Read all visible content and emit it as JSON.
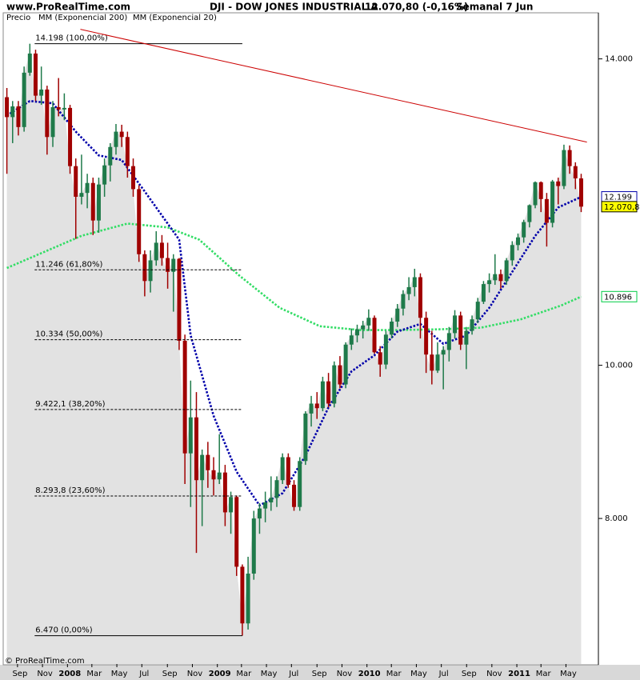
{
  "header": {
    "site": "www.ProRealTime.com",
    "instrument": "DJI - DOW JONES INDUSTRIAL A",
    "quote": "12.070,80 (-0,16%)",
    "period": "Semanal  7 Jun"
  },
  "footer": "© ProRealTime.com",
  "chart_data": {
    "type": "ohlc",
    "xlim": [
      -1,
      206
    ],
    "ylim": [
      6100,
      14560
    ],
    "xticks": [
      {
        "value": 3.7,
        "label": "Sep"
      },
      {
        "value": 12.4,
        "label": "Nov"
      },
      {
        "value": 21.1,
        "label": "2008"
      },
      {
        "value": 29.6,
        "label": "Mar"
      },
      {
        "value": 38.3,
        "label": "May"
      },
      {
        "value": 47,
        "label": "Jul"
      },
      {
        "value": 55.9,
        "label": "Sep"
      },
      {
        "value": 64.6,
        "label": "Nov"
      },
      {
        "value": 73.3,
        "label": "2009"
      },
      {
        "value": 81.7,
        "label": "Mar"
      },
      {
        "value": 90.4,
        "label": "May"
      },
      {
        "value": 99.1,
        "label": "Jul"
      },
      {
        "value": 108,
        "label": "Sep"
      },
      {
        "value": 116.7,
        "label": "Nov"
      },
      {
        "value": 125.4,
        "label": "2010"
      },
      {
        "value": 133.9,
        "label": "Mar"
      },
      {
        "value": 142.6,
        "label": "May"
      },
      {
        "value": 151.3,
        "label": "Jul"
      },
      {
        "value": 160.1,
        "label": "Sep"
      },
      {
        "value": 168.9,
        "label": "Nov"
      },
      {
        "value": 177.6,
        "label": "2011"
      },
      {
        "value": 186,
        "label": "Mar"
      },
      {
        "value": 194.7,
        "label": "May"
      }
    ],
    "yticks": [
      {
        "value": 14000,
        "label": "14.000"
      },
      {
        "value": 10000,
        "label": "10.000"
      },
      {
        "value": 8000,
        "label": "8.000"
      }
    ],
    "series": [
      {
        "name": "Precio",
        "up_color": "#1f7a4a",
        "down_color": "#a00000",
        "area_color": "#e2e2e2",
        "x": [
          0,
          2,
          4,
          6,
          8,
          10,
          12,
          14,
          16,
          18,
          20,
          22,
          24,
          26,
          28,
          30,
          32,
          34,
          36,
          38,
          40,
          42,
          44,
          46,
          48,
          50,
          52,
          54,
          56,
          58,
          60,
          62,
          64,
          66,
          68,
          70,
          72,
          74,
          76,
          78,
          80,
          82,
          84,
          86,
          88,
          90,
          92,
          94,
          96,
          98,
          100,
          102,
          104,
          106,
          108,
          110,
          112,
          114,
          116,
          118,
          120,
          122,
          124,
          126,
          128,
          130,
          132,
          134,
          136,
          138,
          140,
          142,
          144,
          146,
          148,
          150,
          152,
          154,
          156,
          158,
          160,
          162,
          164,
          166,
          168,
          170,
          172,
          174,
          176,
          178,
          180,
          182,
          184,
          186,
          188,
          190,
          192,
          194,
          196,
          198,
          200
        ],
        "values": [
          [
            13500,
            13620,
            12500,
            13240
          ],
          [
            13240,
            13450,
            12900,
            13380
          ],
          [
            13380,
            13450,
            13000,
            13110
          ],
          [
            13110,
            13900,
            13050,
            13820
          ],
          [
            13820,
            14198,
            13780,
            14070
          ],
          [
            14070,
            14120,
            13450,
            13520
          ],
          [
            13520,
            13900,
            13400,
            13600
          ],
          [
            13600,
            13650,
            12750,
            12980
          ],
          [
            12980,
            13450,
            12850,
            13370
          ],
          [
            13370,
            13750,
            13250,
            13340
          ],
          [
            13340,
            13550,
            13200,
            13360
          ],
          [
            13360,
            13400,
            12500,
            12600
          ],
          [
            12600,
            12700,
            11650,
            12200
          ],
          [
            12200,
            12750,
            12100,
            12250
          ],
          [
            12250,
            12500,
            12050,
            12380
          ],
          [
            12380,
            12450,
            11700,
            11890
          ],
          [
            11890,
            12450,
            11730,
            12360
          ],
          [
            12360,
            12700,
            12200,
            12610
          ],
          [
            12610,
            12900,
            12400,
            12850
          ],
          [
            12850,
            13150,
            12750,
            13050
          ],
          [
            13050,
            13140,
            12850,
            12980
          ],
          [
            12980,
            13050,
            12450,
            12600
          ],
          [
            12600,
            12700,
            12200,
            12300
          ],
          [
            12300,
            12350,
            11350,
            11450
          ],
          [
            11450,
            11500,
            10900,
            11100
          ],
          [
            11100,
            11500,
            10950,
            11370
          ],
          [
            11370,
            11750,
            11300,
            11600
          ],
          [
            11600,
            11700,
            11300,
            11400
          ],
          [
            11400,
            11600,
            11000,
            11220
          ],
          [
            11220,
            11450,
            10700,
            11390
          ],
          [
            11390,
            11400,
            10200,
            10320
          ],
          [
            10320,
            10400,
            8450,
            8850
          ],
          [
            8850,
            9800,
            8150,
            9320
          ],
          [
            9320,
            9650,
            7550,
            8500
          ],
          [
            8500,
            8900,
            7900,
            8830
          ],
          [
            8830,
            9000,
            8400,
            8630
          ],
          [
            8630,
            8800,
            8300,
            8510
          ],
          [
            8510,
            9100,
            8450,
            8600
          ],
          [
            8600,
            8700,
            7900,
            8080
          ],
          [
            8080,
            8350,
            7800,
            8280
          ],
          [
            8280,
            8300,
            7250,
            7370
          ],
          [
            7370,
            7400,
            6470,
            6630
          ],
          [
            6630,
            7500,
            6550,
            7280
          ],
          [
            7280,
            8100,
            7200,
            8000
          ],
          [
            8000,
            8200,
            7800,
            8130
          ],
          [
            8130,
            8350,
            7950,
            8210
          ],
          [
            8210,
            8550,
            8100,
            8270
          ],
          [
            8270,
            8550,
            8150,
            8500
          ],
          [
            8500,
            8850,
            8450,
            8800
          ],
          [
            8800,
            8850,
            8400,
            8440
          ],
          [
            8440,
            8500,
            8100,
            8150
          ],
          [
            8150,
            8800,
            8100,
            8750
          ],
          [
            8750,
            9400,
            8700,
            9370
          ],
          [
            9370,
            9600,
            9200,
            9500
          ],
          [
            9500,
            9650,
            9300,
            9440
          ],
          [
            9440,
            9850,
            9400,
            9790
          ],
          [
            9790,
            9900,
            9450,
            9500
          ],
          [
            9500,
            10050,
            9450,
            10000
          ],
          [
            10000,
            10120,
            9700,
            9750
          ],
          [
            9750,
            10300,
            9700,
            10270
          ],
          [
            10270,
            10480,
            10200,
            10390
          ],
          [
            10390,
            10530,
            10300,
            10470
          ],
          [
            10470,
            10580,
            10350,
            10520
          ],
          [
            10520,
            10730,
            10450,
            10620
          ],
          [
            10620,
            10650,
            10150,
            10170
          ],
          [
            10170,
            10250,
            9850,
            10010
          ],
          [
            10010,
            10450,
            9950,
            10400
          ],
          [
            10400,
            10620,
            10350,
            10570
          ],
          [
            10570,
            10800,
            10500,
            10740
          ],
          [
            10740,
            10980,
            10650,
            10930
          ],
          [
            10930,
            11150,
            10850,
            11020
          ],
          [
            11020,
            11260,
            10900,
            11150
          ],
          [
            11150,
            11200,
            10350,
            10620
          ],
          [
            10620,
            10700,
            9900,
            10140
          ],
          [
            10140,
            10450,
            9750,
            9930
          ],
          [
            9930,
            10300,
            9900,
            10140
          ],
          [
            10140,
            10250,
            9686,
            10200
          ],
          [
            10200,
            10500,
            10050,
            10420
          ],
          [
            10420,
            10720,
            10350,
            10650
          ],
          [
            10650,
            10700,
            10200,
            10270
          ],
          [
            10270,
            10500,
            9950,
            10450
          ],
          [
            10450,
            10650,
            10400,
            10600
          ],
          [
            10600,
            10880,
            10550,
            10830
          ],
          [
            10830,
            11100,
            10800,
            11060
          ],
          [
            11060,
            11200,
            10950,
            11110
          ],
          [
            11110,
            11450,
            11050,
            11190
          ],
          [
            11190,
            11250,
            11000,
            11100
          ],
          [
            11100,
            11400,
            11050,
            11370
          ],
          [
            11370,
            11620,
            11300,
            11570
          ],
          [
            11570,
            11720,
            11500,
            11670
          ],
          [
            11670,
            11900,
            11600,
            11870
          ],
          [
            11870,
            12100,
            11800,
            12090
          ],
          [
            12090,
            12400,
            12050,
            12390
          ],
          [
            12390,
            12400,
            12000,
            12170
          ],
          [
            12170,
            12250,
            11550,
            11860
          ],
          [
            11860,
            12420,
            11800,
            12400
          ],
          [
            12400,
            12450,
            12100,
            12340
          ],
          [
            12340,
            12880,
            12300,
            12810
          ],
          [
            12810,
            12870,
            12500,
            12600
          ],
          [
            12600,
            12650,
            12300,
            12440
          ],
          [
            12440,
            12500,
            12000,
            12071
          ]
        ]
      },
      {
        "name": "MM (Exponencial 200)",
        "color": "#33dd66",
        "x": [
          0,
          26,
          42,
          56,
          67,
          81,
          95,
          109,
          123,
          137,
          151,
          165,
          179,
          193,
          200
        ],
        "values": [
          11270,
          11690,
          11850,
          11800,
          11640,
          11170,
          10750,
          10510,
          10460,
          10460,
          10470,
          10490,
          10600,
          10780,
          10896
        ]
      },
      {
        "name": "MM (Exponencial 20)",
        "color": "#0000aa",
        "x": [
          0,
          8,
          16,
          24,
          32,
          40,
          48,
          56,
          60,
          64,
          72,
          80,
          88,
          96,
          104,
          112,
          120,
          128,
          136,
          144,
          152,
          160,
          168,
          176,
          184,
          192,
          200
        ],
        "values": [
          13260,
          13450,
          13420,
          13050,
          12740,
          12680,
          12270,
          11850,
          11640,
          10390,
          9340,
          8610,
          8170,
          8330,
          8820,
          9450,
          9920,
          10130,
          10440,
          10540,
          10280,
          10390,
          10750,
          11220,
          11690,
          12060,
          12199
        ]
      }
    ],
    "trendline": {
      "color": "#cc0000",
      "x": [
        25.6,
        202
      ],
      "y": [
        14386,
        12914
      ]
    },
    "fibonacci": [
      {
        "value": 14198,
        "label": "14.198 (100,00%)"
      },
      {
        "value": 11246,
        "label": "11.246 (61,80%)"
      },
      {
        "value": 10334,
        "label": "10.334 (50,00%)"
      },
      {
        "value": 9422.1,
        "label": "9.422,1 (38,20%)"
      },
      {
        "value": 8293.8,
        "label": "8.293,8 (23,60%)"
      },
      {
        "value": 6470,
        "label": "6.470 (0,00%)"
      }
    ],
    "price_labels": [
      {
        "value": 12199,
        "label": "12.199",
        "color": "#0000aa",
        "background": "#ffffff"
      },
      {
        "value": 12070.8,
        "label": "12.070,8",
        "color": "#000000",
        "background": "#ffff00"
      },
      {
        "value": 10896,
        "label": "10.896",
        "color": "#00cc44",
        "background": "#ffffff"
      }
    ]
  }
}
